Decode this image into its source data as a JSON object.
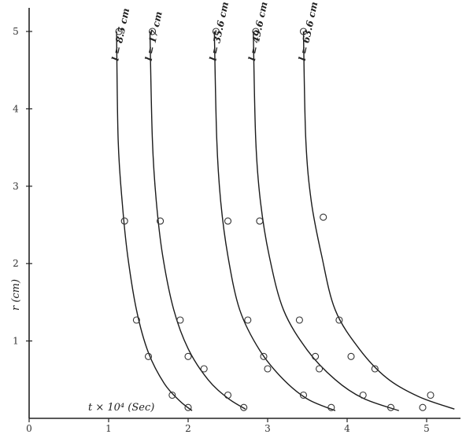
{
  "chart_data": {
    "type": "scatter",
    "title": "",
    "xlabel": "t × 10⁴ (Sec)",
    "ylabel": "r (cm)",
    "xlim": [
      0,
      5.5
    ],
    "ylim": [
      0,
      5.1
    ],
    "x_ticks": [
      "0",
      "1",
      "2",
      "3",
      "4",
      "5"
    ],
    "y_ticks": [
      "0",
      "1",
      "2",
      "3",
      "4",
      "5"
    ],
    "grid": false,
    "series": [
      {
        "name": "l = 8.5 cm",
        "points": [
          [
            1.13,
            5.0
          ],
          [
            1.2,
            2.55
          ],
          [
            1.35,
            1.27
          ],
          [
            1.5,
            0.8
          ],
          [
            1.8,
            0.3
          ],
          [
            2.0,
            0.14
          ]
        ],
        "curve": [
          [
            1.1,
            5.0
          ],
          [
            1.12,
            3.6
          ],
          [
            1.17,
            2.8
          ],
          [
            1.24,
            2.1
          ],
          [
            1.35,
            1.4
          ],
          [
            1.5,
            0.85
          ],
          [
            1.7,
            0.45
          ],
          [
            1.9,
            0.22
          ],
          [
            2.05,
            0.1
          ]
        ]
      },
      {
        "name": "l = 17 cm",
        "points": [
          [
            1.55,
            5.0
          ],
          [
            1.65,
            2.55
          ],
          [
            1.9,
            1.27
          ],
          [
            2.0,
            0.8
          ],
          [
            2.2,
            0.64
          ],
          [
            2.5,
            0.3
          ],
          [
            2.7,
            0.14
          ]
        ],
        "curve": [
          [
            1.52,
            5.0
          ],
          [
            1.55,
            3.6
          ],
          [
            1.6,
            2.8
          ],
          [
            1.68,
            2.1
          ],
          [
            1.82,
            1.4
          ],
          [
            2.0,
            0.9
          ],
          [
            2.25,
            0.5
          ],
          [
            2.5,
            0.26
          ],
          [
            2.72,
            0.12
          ]
        ]
      },
      {
        "name": "l = 35.6 cm",
        "points": [
          [
            2.35,
            5.0
          ],
          [
            2.5,
            2.55
          ],
          [
            2.75,
            1.27
          ],
          [
            2.95,
            0.8
          ],
          [
            3.0,
            0.64
          ],
          [
            3.45,
            0.3
          ],
          [
            3.8,
            0.14
          ]
        ],
        "curve": [
          [
            2.33,
            5.0
          ],
          [
            2.36,
            3.6
          ],
          [
            2.41,
            2.8
          ],
          [
            2.5,
            2.1
          ],
          [
            2.65,
            1.4
          ],
          [
            2.9,
            0.88
          ],
          [
            3.2,
            0.5
          ],
          [
            3.5,
            0.25
          ],
          [
            3.85,
            0.1
          ]
        ]
      },
      {
        "name": "l = 49.6 cm",
        "points": [
          [
            2.85,
            5.0
          ],
          [
            2.9,
            2.55
          ],
          [
            3.4,
            1.27
          ],
          [
            3.6,
            0.8
          ],
          [
            3.65,
            0.64
          ],
          [
            4.2,
            0.3
          ],
          [
            4.55,
            0.14
          ]
        ],
        "curve": [
          [
            2.82,
            5.0
          ],
          [
            2.85,
            3.6
          ],
          [
            2.91,
            2.8
          ],
          [
            3.02,
            2.1
          ],
          [
            3.2,
            1.4
          ],
          [
            3.5,
            0.88
          ],
          [
            3.85,
            0.5
          ],
          [
            4.2,
            0.26
          ],
          [
            4.65,
            0.1
          ]
        ]
      },
      {
        "name": "l = 63.6 cm",
        "points": [
          [
            3.45,
            5.0
          ],
          [
            3.7,
            2.6
          ],
          [
            3.9,
            1.27
          ],
          [
            4.05,
            0.8
          ],
          [
            4.35,
            0.64
          ],
          [
            5.05,
            0.3
          ],
          [
            4.95,
            0.14
          ]
        ],
        "curve": [
          [
            3.45,
            5.0
          ],
          [
            3.48,
            3.6
          ],
          [
            3.55,
            2.8
          ],
          [
            3.68,
            2.1
          ],
          [
            3.85,
            1.4
          ],
          [
            4.15,
            0.9
          ],
          [
            4.5,
            0.52
          ],
          [
            4.9,
            0.28
          ],
          [
            5.35,
            0.12
          ]
        ]
      }
    ],
    "curve_labels": [
      "l = 8.5 cm",
      "l = 17 cm",
      "l = 35.6 cm",
      "l = 49.6 cm",
      "l = 63.6 cm"
    ]
  }
}
